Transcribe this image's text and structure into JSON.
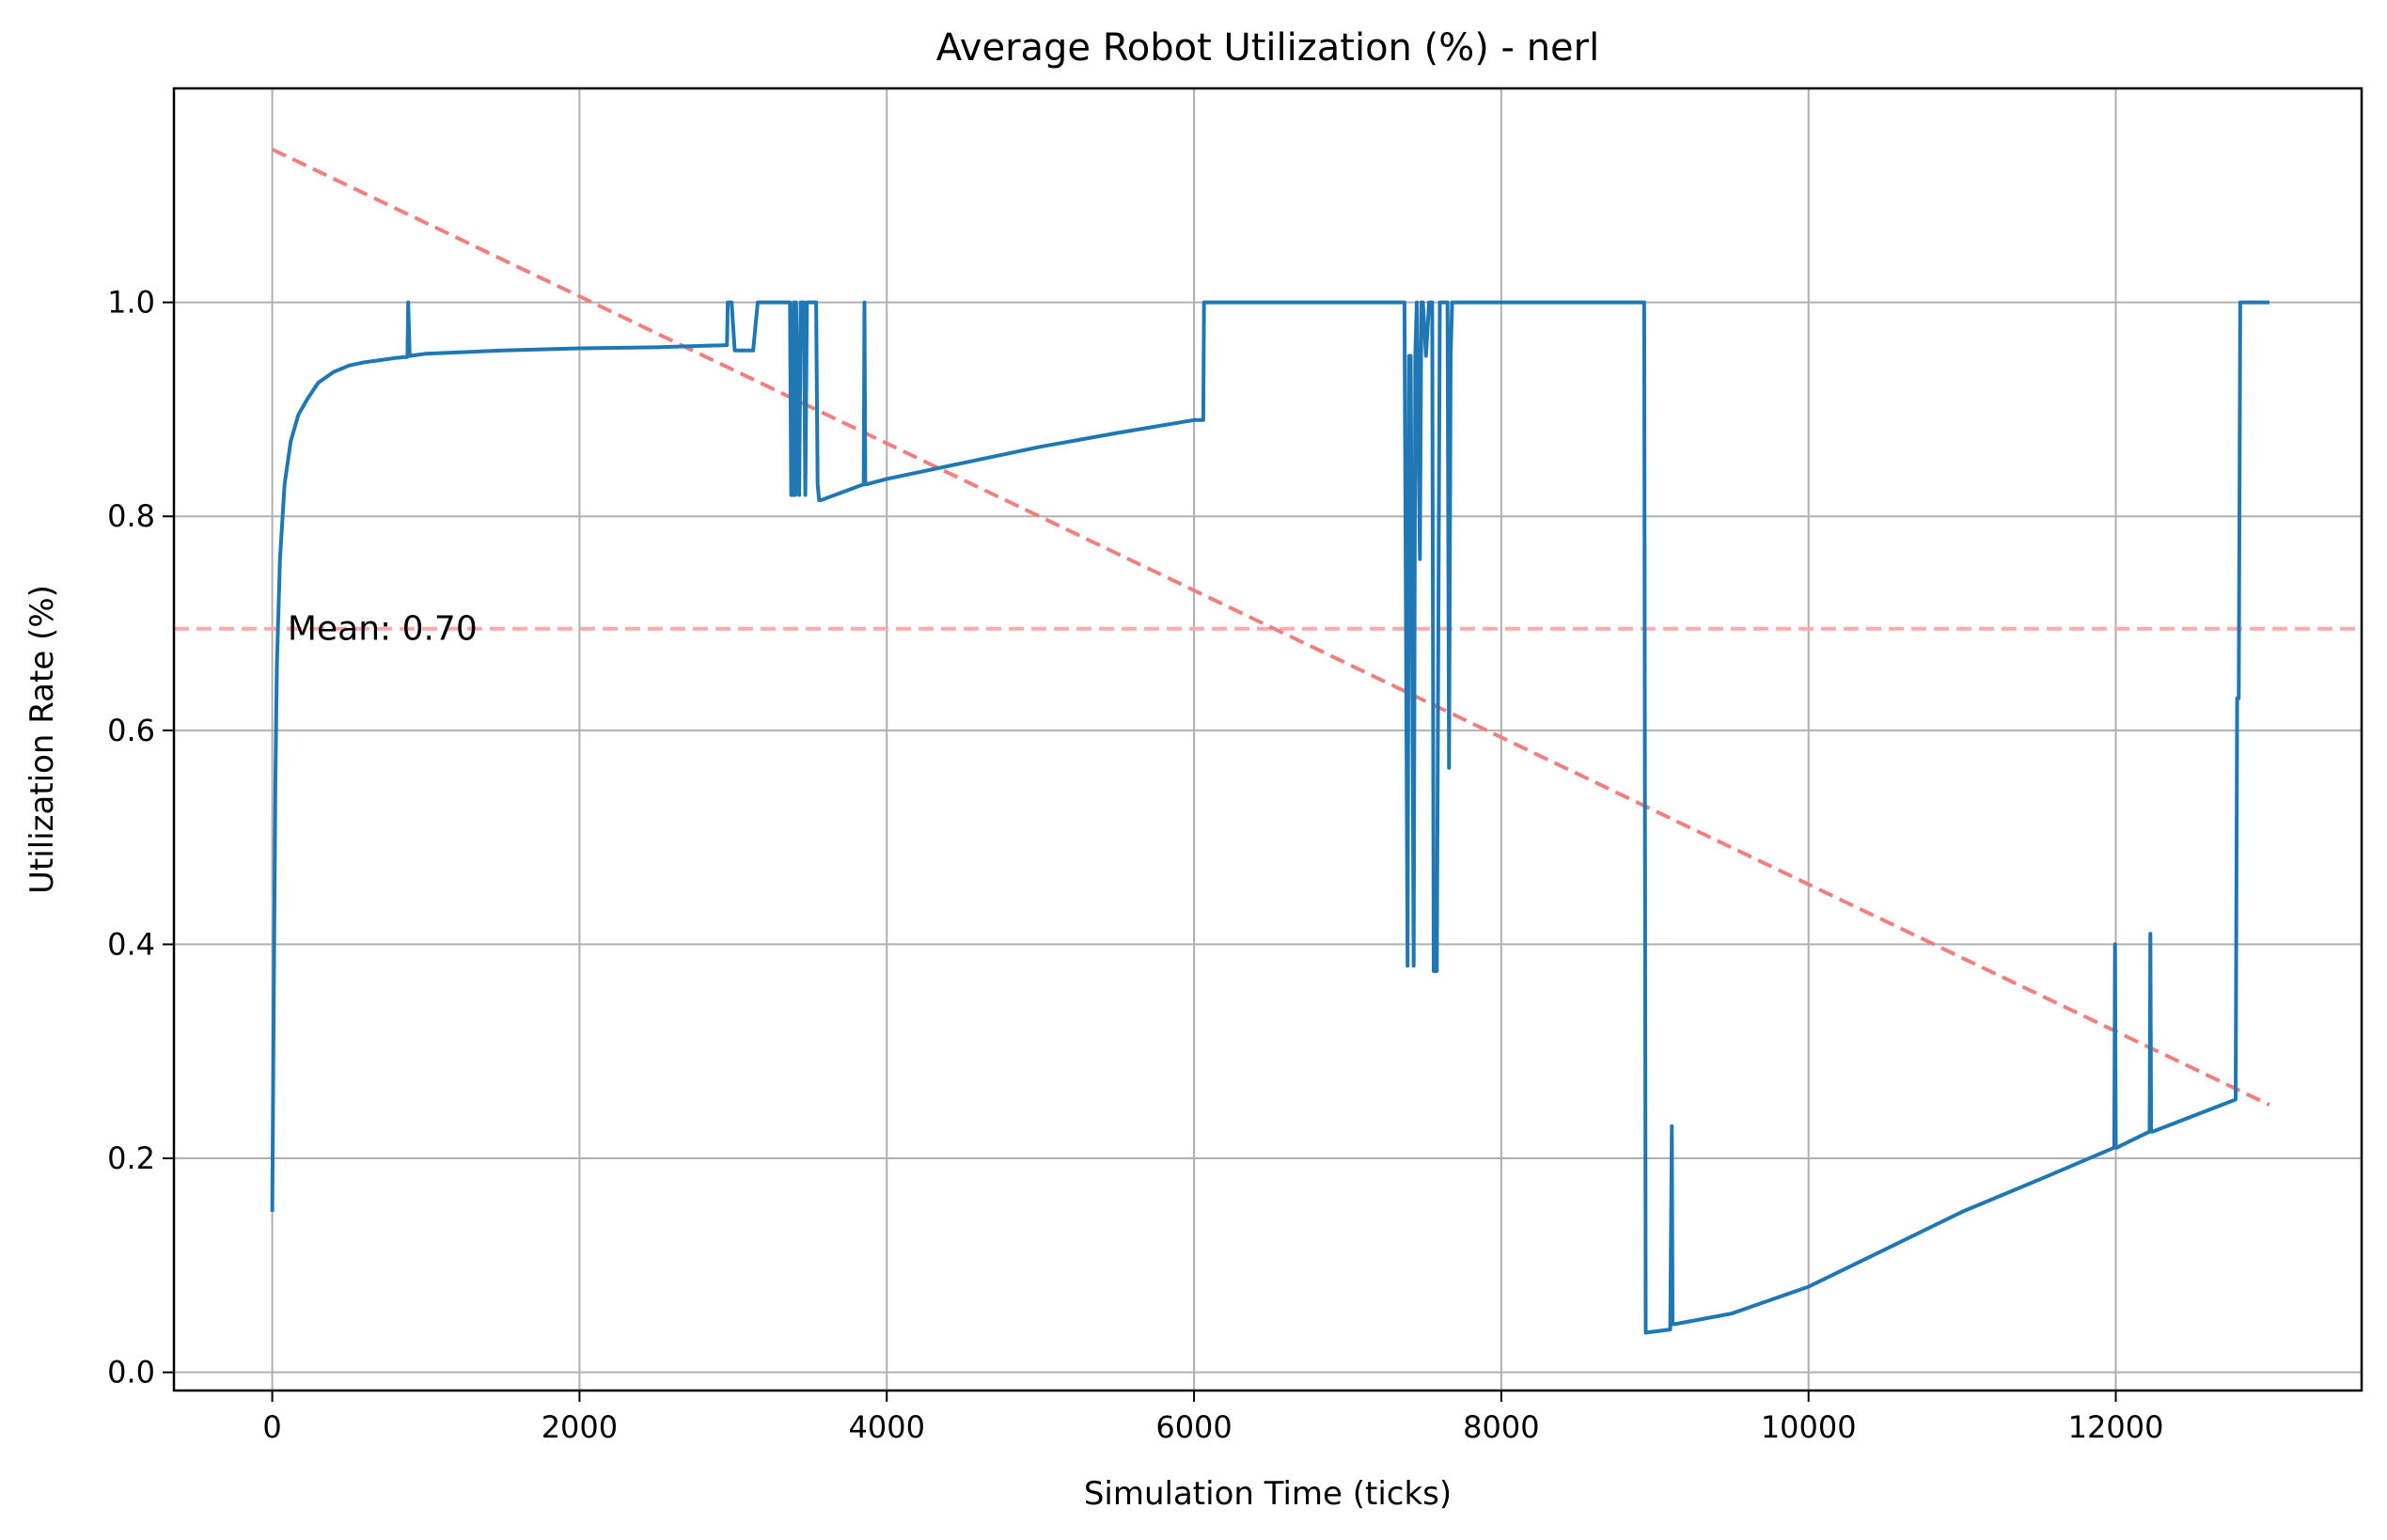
{
  "chart_data": {
    "type": "line",
    "title": "Average Robot Utilization (%) - nerl",
    "xlabel": "Simulation Time (ticks)",
    "ylabel": "Utilization Rate (%)",
    "xlim": [
      -640,
      13600
    ],
    "ylim": [
      -0.017,
      1.2
    ],
    "xticks": [
      0,
      2000,
      4000,
      6000,
      8000,
      10000,
      12000
    ],
    "xtick_labels": [
      "0",
      "2000",
      "4000",
      "6000",
      "8000",
      "10000",
      "12000"
    ],
    "yticks": [
      0.0,
      0.2,
      0.4,
      0.6,
      0.8,
      1.0
    ],
    "ytick_labels": [
      "0.0",
      "0.2",
      "0.4",
      "0.6",
      "0.8",
      "1.0"
    ],
    "grid": true,
    "legend": "none",
    "colors": {
      "series": "#1f77b4",
      "trend": "#f08080",
      "mean": "#ffaaaa",
      "grid": "#b0b0b0"
    },
    "series": [
      {
        "x": [
          0,
          10,
          20,
          30,
          50,
          80,
          120,
          170,
          230,
          300,
          400,
          500,
          600,
          700,
          800,
          880,
          885,
          895,
          900,
          1000,
          1500,
          2000,
          2500,
          2960,
          2965,
          2990,
          3010,
          3020,
          3130,
          3160,
          3165,
          3370,
          3378,
          3388,
          3395,
          3400,
          3405,
          3410,
          3430,
          3440,
          3460,
          3470,
          3480,
          3500,
          3540,
          3550,
          3560,
          3570,
          3850,
          3855,
          3860,
          3865,
          3870,
          4000,
          4500,
          5000,
          5500,
          6000,
          6060,
          6065,
          7350,
          7360,
          7370,
          7390,
          7400,
          7410,
          7430,
          7440,
          7450,
          7470,
          7480,
          7490,
          7510,
          7530,
          7550,
          7560,
          7580,
          7600,
          7610,
          7620,
          7640,
          7650,
          7660,
          7670,
          7680,
          7690,
          7700,
          7710,
          8000,
          8500,
          8920,
          8930,
          8940,
          9100,
          9110,
          9115,
          9120,
          9130,
          9500,
          10000,
          10500,
          11000,
          11500,
          11990,
          11995,
          12000,
          12005,
          12220,
          12225,
          12230,
          12240,
          12780,
          12790,
          12800,
          12810,
          13000
        ],
        "y": [
          0.15,
          0.35,
          0.55,
          0.66,
          0.76,
          0.83,
          0.87,
          0.895,
          0.91,
          0.925,
          0.935,
          0.941,
          0.944,
          0.946,
          0.948,
          0.949,
          1.0,
          0.95,
          0.95,
          0.952,
          0.955,
          0.957,
          0.958,
          0.96,
          1.0,
          1.0,
          0.955,
          0.955,
          0.955,
          1.0,
          1.0,
          1.0,
          0.82,
          0.82,
          1.0,
          0.82,
          0.82,
          1.0,
          0.82,
          1.0,
          1.0,
          0.82,
          1.0,
          1.0,
          1.0,
          0.83,
          0.815,
          0.815,
          0.83,
          1.0,
          0.83,
          0.83,
          0.83,
          0.835,
          0.85,
          0.865,
          0.878,
          0.89,
          0.89,
          1.0,
          1.0,
          1.0,
          1.0,
          0.38,
          0.95,
          0.95,
          0.38,
          0.95,
          1.0,
          0.76,
          1.0,
          1.0,
          0.95,
          1.0,
          1.0,
          0.375,
          0.375,
          1.0,
          1.0,
          1.0,
          1.0,
          1.0,
          0.565,
          0.95,
          1.0,
          1.0,
          1.0,
          1.0,
          1.0,
          1.0,
          1.0,
          1.0,
          0.037,
          0.04,
          0.23,
          0.045,
          0.045,
          0.045,
          0.055,
          0.08,
          0.115,
          0.15,
          0.18,
          0.21,
          0.4,
          0.21,
          0.21,
          0.225,
          0.41,
          0.225,
          0.225,
          0.255,
          0.63,
          0.63,
          1.0,
          1.0
        ]
      }
    ],
    "trend_line": {
      "x": [
        0,
        13000
      ],
      "y": [
        1.143,
        0.25
      ]
    },
    "mean_line": {
      "y": 0.695
    },
    "annotation": "Mean: 0.70"
  }
}
